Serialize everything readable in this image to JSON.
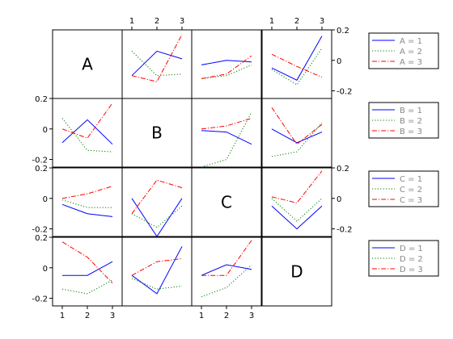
{
  "chart_data": {
    "type": "line",
    "title": "",
    "x": [
      1,
      2,
      3
    ],
    "xticks": [
      "1",
      "2",
      "3"
    ],
    "yticks": [
      "0.2",
      "0",
      "-0.2"
    ],
    "ylim": [
      -0.25,
      0.2
    ],
    "variables": [
      "A",
      "B",
      "C",
      "D"
    ],
    "series_styles": [
      {
        "color": "#0000ff",
        "dash": "none"
      },
      {
        "color": "#008000",
        "dash": "dotted"
      },
      {
        "color": "#ff0000",
        "dash": "dashdot"
      }
    ],
    "legends": [
      {
        "entries": [
          "A = 1",
          "A = 2",
          "A = 3"
        ]
      },
      {
        "entries": [
          "B = 1",
          "B = 2",
          "B = 3"
        ]
      },
      {
        "entries": [
          "C = 1",
          "C = 2",
          "C = 3"
        ]
      },
      {
        "entries": [
          "D = 1",
          "D = 2",
          "D = 3"
        ]
      }
    ],
    "panels": [
      {
        "row": 0,
        "col": 1,
        "series": [
          [
            -0.1,
            0.06,
            0.01
          ],
          [
            0.06,
            -0.1,
            -0.09
          ],
          [
            -0.1,
            -0.14,
            0.17
          ]
        ]
      },
      {
        "row": 0,
        "col": 2,
        "series": [
          [
            -0.03,
            0.0,
            -0.01
          ],
          [
            -0.12,
            -0.1,
            -0.03
          ],
          [
            -0.12,
            -0.09,
            0.03
          ]
        ]
      },
      {
        "row": 0,
        "col": 3,
        "series": [
          [
            -0.05,
            -0.13,
            0.16
          ],
          [
            -0.06,
            -0.16,
            0.08
          ],
          [
            0.04,
            -0.04,
            -0.11
          ]
        ]
      },
      {
        "row": 1,
        "col": 0,
        "series": [
          [
            -0.09,
            0.06,
            -0.1
          ],
          [
            0.07,
            -0.14,
            -0.15
          ],
          [
            0.0,
            -0.06,
            0.17
          ]
        ]
      },
      {
        "row": 1,
        "col": 2,
        "series": [
          [
            -0.01,
            -0.02,
            -0.1
          ],
          [
            -0.25,
            -0.2,
            0.11
          ],
          [
            0.0,
            0.02,
            0.07
          ]
        ]
      },
      {
        "row": 1,
        "col": 3,
        "series": [
          [
            0.0,
            -0.09,
            -0.02
          ],
          [
            -0.18,
            -0.15,
            0.04
          ],
          [
            0.14,
            -0.1,
            0.03
          ]
        ]
      },
      {
        "row": 2,
        "col": 0,
        "series": [
          [
            -0.04,
            -0.1,
            -0.12
          ],
          [
            -0.01,
            -0.06,
            -0.06
          ],
          [
            0.0,
            0.03,
            0.08
          ]
        ]
      },
      {
        "row": 2,
        "col": 1,
        "series": [
          [
            0.0,
            -0.25,
            0.0
          ],
          [
            -0.1,
            -0.19,
            -0.05
          ],
          [
            -0.1,
            0.12,
            0.07
          ]
        ]
      },
      {
        "row": 2,
        "col": 3,
        "series": [
          [
            -0.05,
            -0.2,
            -0.05
          ],
          [
            0.0,
            -0.15,
            0.0
          ],
          [
            0.01,
            -0.03,
            0.18
          ]
        ]
      },
      {
        "row": 3,
        "col": 0,
        "series": [
          [
            -0.05,
            -0.05,
            0.04
          ],
          [
            -0.14,
            -0.17,
            -0.08
          ],
          [
            0.17,
            0.07,
            -0.1
          ]
        ]
      },
      {
        "row": 3,
        "col": 1,
        "series": [
          [
            -0.05,
            -0.17,
            0.14
          ],
          [
            -0.07,
            -0.14,
            -0.12
          ],
          [
            -0.05,
            0.04,
            0.06
          ]
        ]
      },
      {
        "row": 3,
        "col": 2,
        "series": [
          [
            -0.05,
            0.02,
            -0.01
          ],
          [
            -0.19,
            -0.13,
            0.02
          ],
          [
            -0.05,
            -0.05,
            0.18
          ]
        ]
      }
    ]
  }
}
